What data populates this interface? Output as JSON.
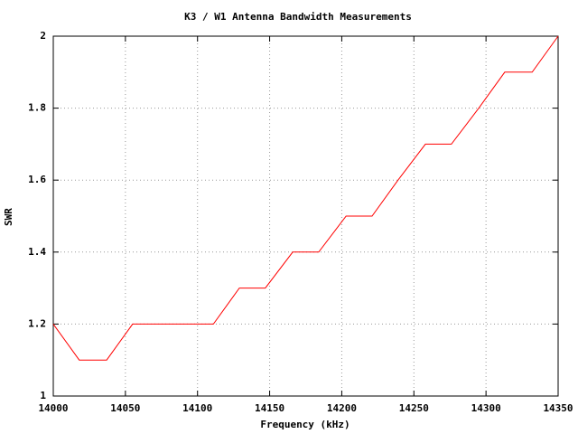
{
  "chart_data": {
    "type": "line",
    "title": "K3 / W1 Antenna Bandwidth Measurements",
    "x_label": "Frequency (kHz)",
    "y_label": "SWR",
    "x": [
      14000,
      14018,
      14037,
      14055,
      14074,
      14092,
      14111,
      14129,
      14147,
      14166,
      14184,
      14203,
      14221,
      14239,
      14258,
      14276,
      14295,
      14313,
      14332,
      14350
    ],
    "values": [
      1.2,
      1.1,
      1.1,
      1.2,
      1.2,
      1.2,
      1.2,
      1.3,
      1.3,
      1.4,
      1.4,
      1.5,
      1.5,
      1.6,
      1.7,
      1.7,
      1.8,
      1.9,
      1.9,
      2
    ],
    "color": "#ff0000",
    "xlim": [
      14000,
      14350
    ],
    "xticks": [
      14000,
      14050,
      14100,
      14150,
      14200,
      14250,
      14300,
      14350
    ],
    "ylim": [
      1,
      2
    ],
    "yticks": [
      1,
      1.2,
      1.4,
      1.6,
      1.8,
      2
    ],
    "grid": true
  }
}
